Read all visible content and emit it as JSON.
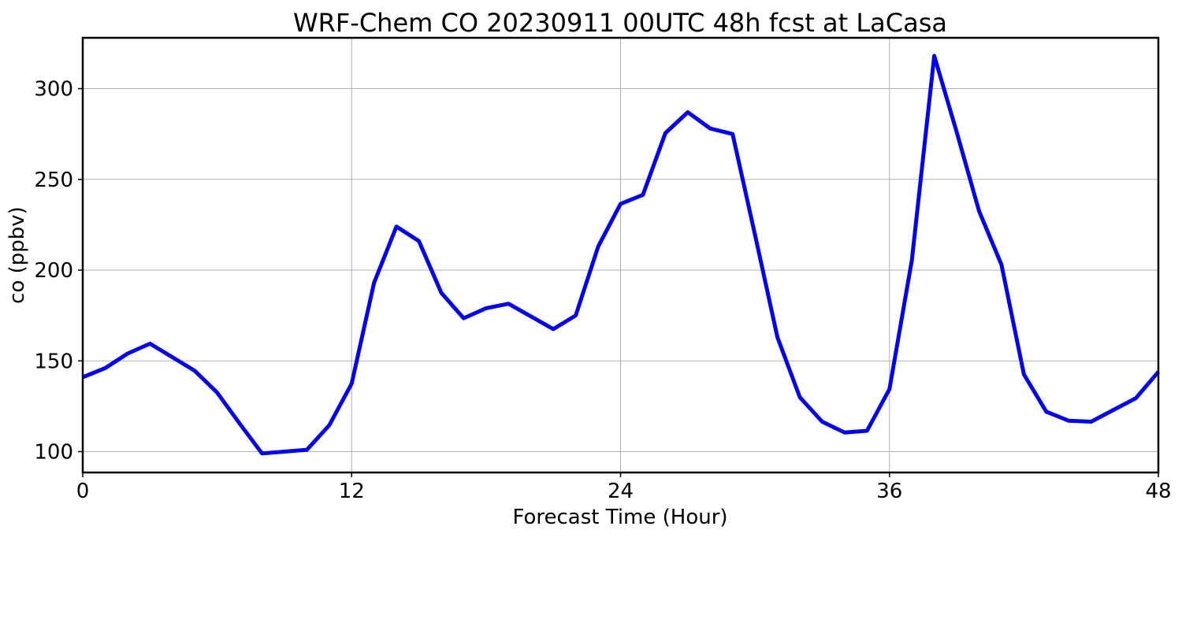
{
  "chart_data": {
    "type": "line",
    "title": "WRF-Chem CO  20230911 00UTC 48h fcst at LaCasa",
    "xlabel": "Forecast Time (Hour)",
    "ylabel": "co  (ppbv)",
    "xlim": [
      0,
      48
    ],
    "ylim": [
      88.5,
      328
    ],
    "xticks": [
      0,
      12,
      24,
      36,
      48
    ],
    "yticks": [
      100,
      150,
      200,
      250,
      300
    ],
    "grid": true,
    "color": "#0000ff",
    "series": [
      {
        "x": [
          0,
          1,
          2,
          3,
          4,
          5,
          6,
          7,
          8,
          9,
          10,
          11,
          12,
          13,
          14,
          15,
          16,
          17,
          18,
          19,
          20,
          21,
          22,
          23,
          24,
          25,
          26,
          27,
          28,
          29,
          30,
          31,
          32,
          33,
          34,
          35,
          36,
          37,
          38,
          39,
          40,
          41,
          42,
          43,
          44,
          45,
          46,
          47,
          48
        ],
        "values": [
          141,
          146,
          154,
          159.5,
          152,
          144.5,
          132.5,
          115.5,
          99,
          100,
          101,
          114.5,
          137.5,
          193,
          224,
          216,
          187.5,
          173.5,
          179,
          181.5,
          174.5,
          167.5,
          175,
          213,
          236.5,
          241.5,
          275.5,
          287,
          278,
          275,
          219.5,
          163,
          130,
          116.5,
          110.5,
          111.5,
          134.5,
          205.5,
          318,
          276,
          232.5,
          203,
          142.5,
          122,
          117,
          116.5,
          123,
          129.5,
          144
        ]
      }
    ]
  }
}
